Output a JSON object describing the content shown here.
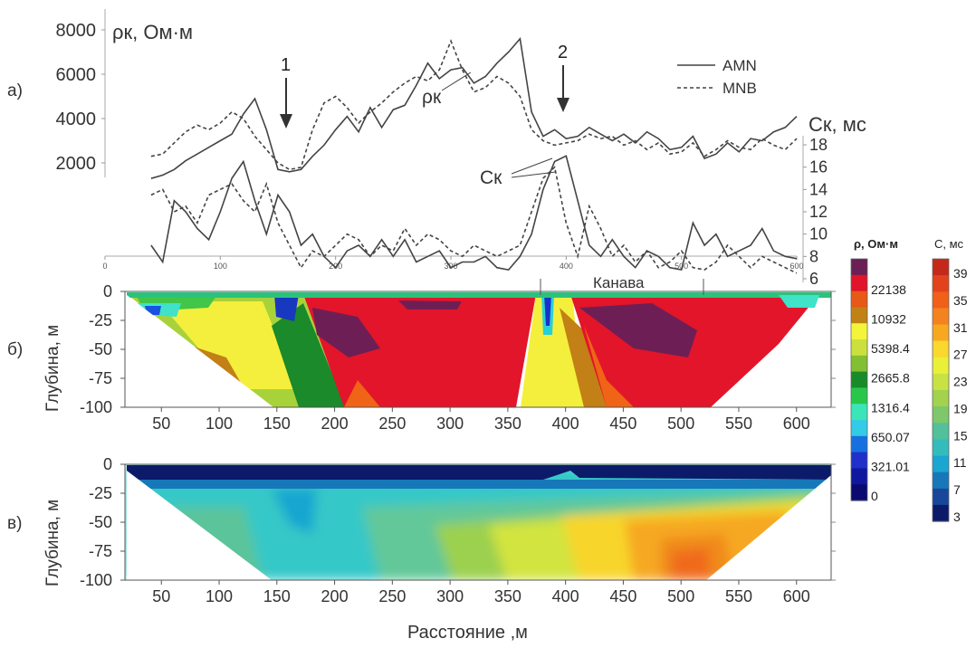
{
  "figure": {
    "panel_labels": [
      "а)",
      "б)",
      "в)"
    ],
    "x_axis_title": "Расстояние ,м"
  },
  "chart_data": [
    {
      "type": "line",
      "panel": "а)",
      "left_axis_label": "ρк, Ом·м",
      "right_axis_label": "Cк, мс",
      "left_yticks": [
        2000,
        4000,
        6000,
        8000
      ],
      "right_yticks": [
        6,
        8,
        10,
        12,
        14,
        16,
        18
      ],
      "x_ticks": [
        0,
        100,
        200,
        300,
        400,
        500,
        600
      ],
      "xlim": [
        0,
        600
      ],
      "rho_ylim": [
        1200,
        8000
      ],
      "c_ylim": [
        6,
        18
      ],
      "annotations": {
        "arrow1": "1",
        "arrow2": "2",
        "rho": "ρк",
        "c": "Cк"
      },
      "legend": [
        {
          "label": "AMN",
          "style": "solid"
        },
        {
          "label": "MNB",
          "style": "dashed"
        }
      ],
      "series": [
        {
          "name": "AMN",
          "quantity": "rho",
          "x": [
            40,
            50,
            60,
            70,
            80,
            90,
            100,
            110,
            120,
            130,
            140,
            150,
            160,
            170,
            180,
            190,
            200,
            210,
            220,
            230,
            240,
            250,
            260,
            270,
            280,
            290,
            300,
            310,
            320,
            330,
            340,
            350,
            360,
            370,
            380,
            390,
            400,
            410,
            420,
            430,
            440,
            450,
            460,
            470,
            480,
            490,
            500,
            510,
            520,
            530,
            540,
            550,
            560,
            570,
            580,
            590,
            600
          ],
          "values": [
            1300,
            1450,
            1700,
            2100,
            2400,
            2700,
            3000,
            3300,
            4200,
            4900,
            3500,
            1700,
            1600,
            1700,
            2300,
            2800,
            3500,
            4100,
            3400,
            4500,
            3600,
            4400,
            4600,
            5500,
            6500,
            5800,
            6200,
            6300,
            5600,
            5900,
            6500,
            7000,
            7600,
            4300,
            3200,
            3500,
            3100,
            3200,
            3600,
            3300,
            3000,
            3300,
            2900,
            3400,
            3100,
            2600,
            2700,
            3200,
            2200,
            2400,
            2900,
            2500,
            3100,
            3000,
            3400,
            3600,
            4100
          ]
        },
        {
          "name": "MNB",
          "quantity": "rho",
          "x": [
            40,
            50,
            60,
            70,
            80,
            90,
            100,
            110,
            120,
            130,
            140,
            150,
            160,
            170,
            180,
            190,
            200,
            210,
            220,
            230,
            240,
            250,
            260,
            270,
            280,
            290,
            300,
            310,
            320,
            330,
            340,
            350,
            360,
            370,
            380,
            390,
            400,
            410,
            420,
            430,
            440,
            450,
            460,
            470,
            480,
            490,
            500,
            510,
            520,
            530,
            540,
            550,
            560,
            570,
            580,
            590,
            600
          ],
          "values": [
            2300,
            2400,
            2900,
            3400,
            3700,
            3500,
            3800,
            4300,
            4000,
            3200,
            2600,
            2000,
            1700,
            1800,
            3500,
            4700,
            5000,
            4500,
            3800,
            4300,
            4700,
            5200,
            5600,
            5900,
            5700,
            6200,
            7500,
            6200,
            5200,
            5400,
            5900,
            5600,
            5000,
            3500,
            3000,
            2800,
            2900,
            3000,
            3300,
            3100,
            3200,
            2800,
            3000,
            2600,
            2900,
            2400,
            2500,
            2900,
            2300,
            2600,
            3000,
            2700,
            2600,
            3100,
            2800,
            2600,
            3100
          ]
        },
        {
          "name": "AMN",
          "quantity": "C",
          "x": [
            40,
            50,
            60,
            70,
            80,
            90,
            100,
            110,
            120,
            130,
            140,
            150,
            160,
            170,
            180,
            190,
            200,
            210,
            220,
            230,
            240,
            250,
            260,
            270,
            280,
            290,
            300,
            310,
            320,
            330,
            340,
            350,
            360,
            370,
            380,
            390,
            400,
            410,
            420,
            430,
            440,
            450,
            460,
            470,
            480,
            490,
            500,
            510,
            520,
            530,
            540,
            550,
            560,
            570,
            580,
            590,
            600
          ],
          "values": [
            9.0,
            7.5,
            13.0,
            12.0,
            10.5,
            9.5,
            12.0,
            15.0,
            16.5,
            13.0,
            10.0,
            13.5,
            12.0,
            9.0,
            10.0,
            8.0,
            7.0,
            8.5,
            9.0,
            8.0,
            9.5,
            8.0,
            9.5,
            7.5,
            8.0,
            8.5,
            7.0,
            7.5,
            7.5,
            8.0,
            7.0,
            6.8,
            8.0,
            10.0,
            14.0,
            16.5,
            17.0,
            13.0,
            9.0,
            8.0,
            9.5,
            8.0,
            7.0,
            8.5,
            8.0,
            7.0,
            6.8,
            11.0,
            9.0,
            10.0,
            8.0,
            8.5,
            9.0,
            10.5,
            8.5,
            8.0,
            7.8
          ]
        },
        {
          "name": "MNB",
          "quantity": "C",
          "x": [
            40,
            50,
            60,
            70,
            80,
            90,
            100,
            110,
            120,
            130,
            140,
            150,
            160,
            170,
            180,
            190,
            200,
            210,
            220,
            230,
            240,
            250,
            260,
            270,
            280,
            290,
            300,
            310,
            320,
            330,
            340,
            350,
            360,
            370,
            380,
            390,
            400,
            410,
            420,
            430,
            440,
            450,
            460,
            470,
            480,
            490,
            500,
            510,
            520,
            530,
            540,
            550,
            560,
            570,
            580,
            590,
            600
          ],
          "values": [
            13.5,
            14.0,
            12.0,
            12.5,
            11.0,
            13.5,
            14.0,
            14.5,
            13.0,
            12.0,
            14.5,
            11.0,
            9.0,
            7.0,
            8.5,
            8.0,
            9.0,
            10.0,
            9.5,
            8.0,
            9.0,
            8.5,
            10.5,
            9.0,
            10.0,
            9.5,
            8.5,
            8.0,
            9.0,
            8.5,
            8.0,
            8.5,
            9.0,
            12.0,
            15.0,
            16.0,
            11.0,
            8.0,
            12.5,
            10.5,
            8.0,
            9.0,
            7.5,
            8.5,
            7.0,
            7.5,
            8.5,
            7.0,
            6.8,
            7.5,
            9.0,
            8.0,
            7.0,
            8.0,
            7.5,
            7.0,
            6.5
          ]
        }
      ]
    },
    {
      "type": "heatmap",
      "panel": "б)",
      "ylabel": "Глубина, м",
      "xlabel": "",
      "x_ticks": [
        50,
        100,
        150,
        200,
        250,
        300,
        350,
        400,
        450,
        500,
        550,
        600
      ],
      "y_ticks": [
        0,
        -25,
        -50,
        -75,
        -100
      ],
      "xlim": [
        20,
        630
      ],
      "ylim": [
        -100,
        0
      ],
      "annotation": "Канава",
      "annotation_range": [
        375,
        520
      ],
      "colorbar_title": "ρ, Ом·м",
      "colorbar_labels": [
        "22138",
        "10932",
        "5398.4",
        "2665.8",
        "1316.4",
        "650.07",
        "321.01",
        "0"
      ],
      "colorbar_colors": [
        "#6a1f55",
        "#e0142a",
        "#e85816",
        "#c08214",
        "#f4f43a",
        "#cbe03c",
        "#83bf32",
        "#188a2a",
        "#28c74a",
        "#3ae6b8",
        "#34cbe6",
        "#1870e0",
        "#2030c8",
        "#1018a0",
        "#0a0a70"
      ]
    },
    {
      "type": "heatmap",
      "panel": "в)",
      "ylabel": "Глубина, м",
      "xlabel": "Расстояние ,м",
      "x_ticks": [
        50,
        100,
        150,
        200,
        250,
        300,
        350,
        400,
        450,
        500,
        550,
        600
      ],
      "y_ticks": [
        0,
        -25,
        -50,
        -75,
        -100
      ],
      "xlim": [
        20,
        630
      ],
      "ylim": [
        -100,
        0
      ],
      "colorbar_title": "C, мс",
      "colorbar_labels": [
        "39",
        "35",
        "31",
        "27",
        "23",
        "19",
        "15",
        "11",
        "7",
        "3"
      ],
      "colorbar_colors": [
        "#c4281a",
        "#e2421c",
        "#f06018",
        "#f4821e",
        "#f8a820",
        "#fad82e",
        "#eaf03a",
        "#c8e244",
        "#a2d24e",
        "#7cc86a",
        "#52c09a",
        "#34bcbc",
        "#1aa6d0",
        "#1678b8",
        "#18469a",
        "#0c1a6a"
      ]
    }
  ]
}
